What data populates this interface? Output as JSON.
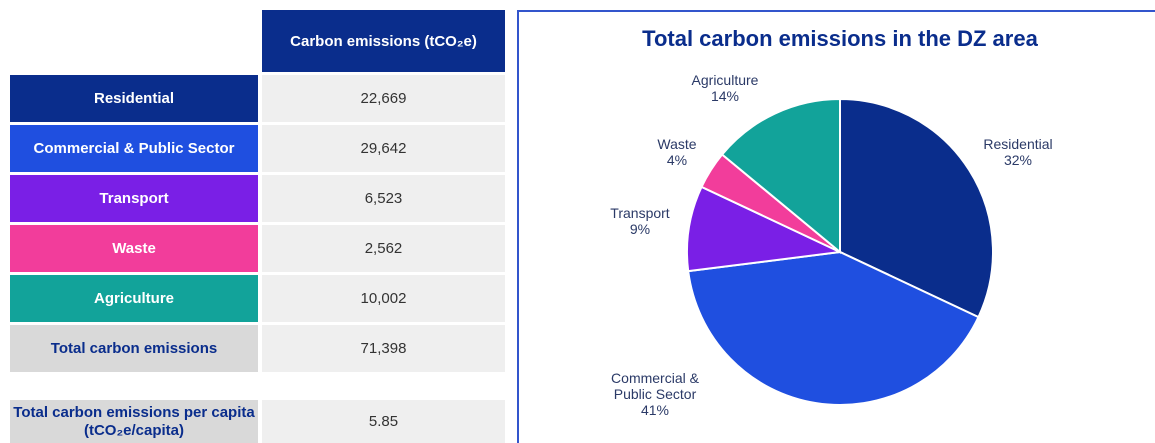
{
  "table": {
    "header": "Carbon emissions (tCO₂e)",
    "rows": [
      [
        "Residential",
        "22,669"
      ],
      [
        "Commercial & Public Sector",
        "29,642"
      ],
      [
        "Transport",
        "6,523"
      ],
      [
        "Waste",
        "2,562"
      ],
      [
        "Agriculture",
        "10,002"
      ],
      [
        "Total carbon emissions",
        "71,398"
      ]
    ],
    "per_capita": [
      "Total carbon emissions per capita (tCO₂e/capita)",
      "5.85"
    ]
  },
  "chart_data": {
    "type": "pie",
    "title": "Total carbon emissions in the DZ area",
    "categories": [
      "Residential",
      "Commercial & Public Sector",
      "Transport",
      "Waste",
      "Agriculture"
    ],
    "values": [
      32,
      41,
      9,
      4,
      14
    ],
    "value_labels": [
      "32%",
      "41%",
      "9%",
      "4%",
      "14%"
    ],
    "colors": [
      "#0a2d8c",
      "#1f4fe0",
      "#7a1fe6",
      "#f23d9b",
      "#12a39a"
    ]
  }
}
